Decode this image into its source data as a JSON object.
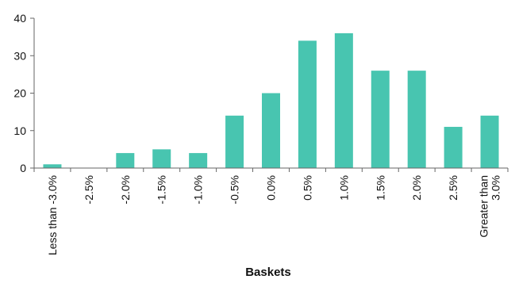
{
  "chart_data": {
    "type": "bar",
    "title": "",
    "xlabel": "Baskets",
    "ylabel": "",
    "categories": [
      "Less than -3.0%",
      "-2.5%",
      "-2.0%",
      "-1.5%",
      "-1.0%",
      "-0.5%",
      "0.0%",
      "0.5%",
      "1.0%",
      "1.5%",
      "2.0%",
      "2.5%",
      "Greater than 3.0%"
    ],
    "category_lines": [
      [
        "Less than -3.0%"
      ],
      [
        "-2.5%"
      ],
      [
        "-2.0%"
      ],
      [
        "-1.5%"
      ],
      [
        "-1.0%"
      ],
      [
        "-0.5%"
      ],
      [
        "0.0%"
      ],
      [
        "0.5%"
      ],
      [
        "1.0%"
      ],
      [
        "1.5%"
      ],
      [
        "2.0%"
      ],
      [
        "2.5%"
      ],
      [
        "Greater than",
        "3.0%"
      ]
    ],
    "values": [
      1,
      0,
      4,
      5,
      4,
      14,
      20,
      34,
      36,
      26,
      26,
      11,
      14
    ],
    "ylim": [
      0,
      40
    ],
    "yticks": [
      0,
      10,
      20,
      30,
      40
    ],
    "grid": false,
    "legend": "none",
    "bar_color": "#48c5b0",
    "axis_color": "#666666",
    "text_color": "#111111"
  }
}
